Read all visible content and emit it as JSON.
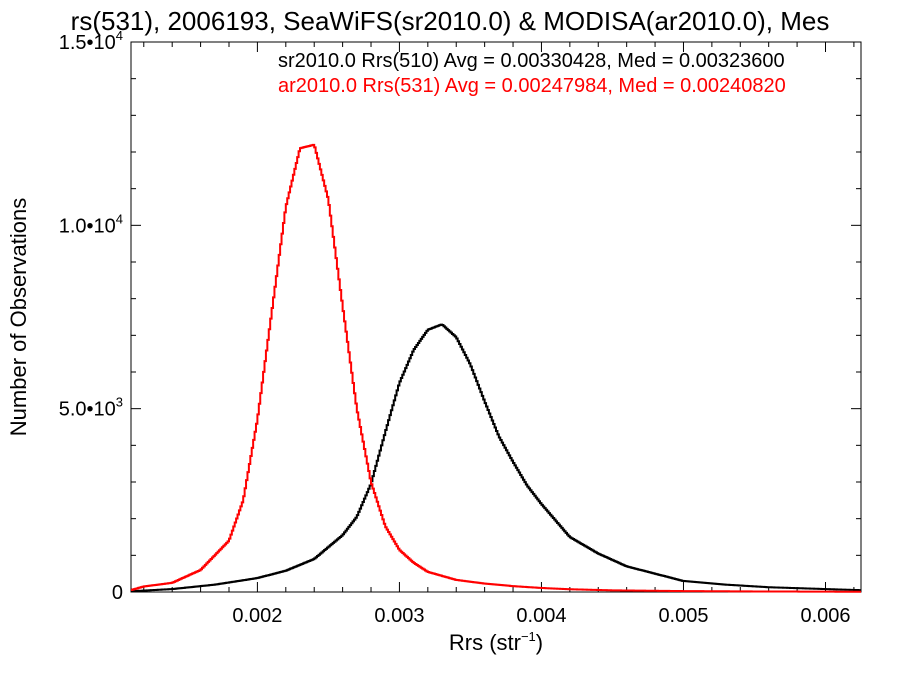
{
  "chart_data": {
    "type": "line",
    "style": "histogram-step",
    "title": "rs(531), 2006193, SeaWiFS(sr2010.0) & MODISA(ar2010.0), Mes",
    "xlabel": "Rrs (str",
    "xlabel_sup": "−1",
    "xlabel_end": ")",
    "ylabel": "Number of Observations",
    "xlim": [
      0.00111,
      0.00625
    ],
    "ylim": [
      0,
      15000
    ],
    "grid": false,
    "legend_position": "top-right",
    "x_ticks": [
      {
        "value": 0.002,
        "label": "0.002"
      },
      {
        "value": 0.003,
        "label": "0.003"
      },
      {
        "value": 0.004,
        "label": "0.004"
      },
      {
        "value": 0.005,
        "label": "0.005"
      },
      {
        "value": 0.006,
        "label": "0.006"
      }
    ],
    "y_ticks": [
      {
        "value": 0,
        "mantissa": "0",
        "sup": ""
      },
      {
        "value": 5000,
        "mantissa": "5.0•10",
        "sup": "3"
      },
      {
        "value": 10000,
        "mantissa": "1.0•10",
        "sup": "4"
      },
      {
        "value": 15000,
        "mantissa": "1.5•10",
        "sup": "4"
      }
    ],
    "series": [
      {
        "name": "sr2010.0 Rrs(510) Avg = 0.00330428, Med = 0.00323600",
        "color": "#000000",
        "x": [
          0.00111,
          0.0014,
          0.0017,
          0.002,
          0.0022,
          0.0024,
          0.0026,
          0.0027,
          0.0028,
          0.0029,
          0.003,
          0.0031,
          0.0032,
          0.0033,
          0.0034,
          0.0035,
          0.0036,
          0.0037,
          0.0038,
          0.0039,
          0.004,
          0.0042,
          0.0044,
          0.0046,
          0.0048,
          0.005,
          0.0053,
          0.0056,
          0.006,
          0.00625
        ],
        "y": [
          20,
          80,
          200,
          380,
          580,
          900,
          1550,
          2050,
          2950,
          4350,
          5700,
          6600,
          7150,
          7300,
          6950,
          6200,
          5200,
          4250,
          3550,
          2900,
          2400,
          1500,
          1050,
          700,
          500,
          300,
          200,
          130,
          80,
          50
        ]
      },
      {
        "name": "ar2010.0 Rrs(531) Avg = 0.00247984, Med = 0.00240820",
        "color": "#ff0000",
        "x": [
          0.00111,
          0.0012,
          0.0014,
          0.0016,
          0.0018,
          0.0019,
          0.002,
          0.0021,
          0.0022,
          0.0023,
          0.0024,
          0.0025,
          0.0026,
          0.0027,
          0.0028,
          0.0029,
          0.003,
          0.0031,
          0.0032,
          0.0034,
          0.0036,
          0.0038,
          0.004,
          0.0042,
          0.0045,
          0.005,
          0.0055,
          0.006,
          0.00625
        ],
        "y": [
          50,
          150,
          250,
          600,
          1400,
          2500,
          4700,
          7600,
          10500,
          12100,
          12200,
          10700,
          7800,
          5000,
          3000,
          1800,
          1150,
          800,
          550,
          330,
          230,
          160,
          110,
          75,
          45,
          25,
          15,
          10,
          5
        ]
      }
    ]
  }
}
